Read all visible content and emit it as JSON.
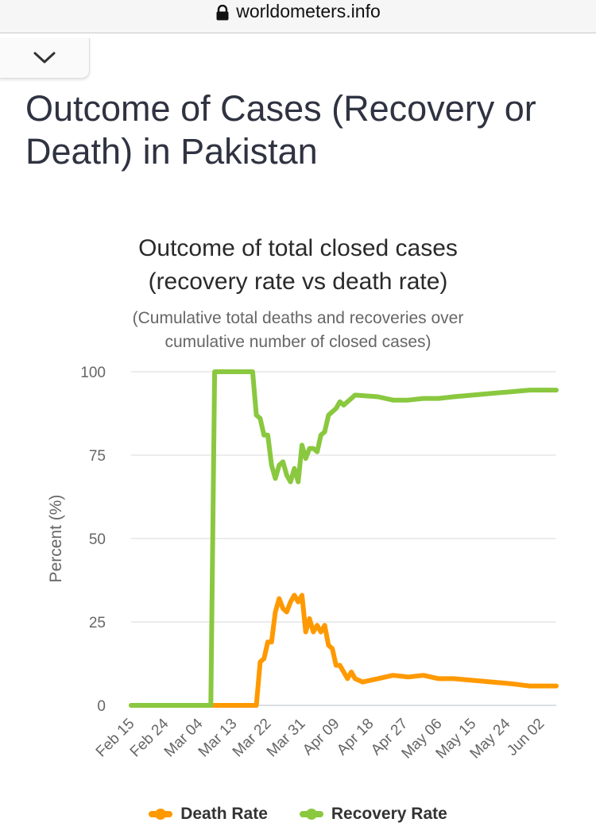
{
  "browser": {
    "url": "worldometers.info"
  },
  "page": {
    "title": "Outcome of Cases (Recovery or Death) in Pakistan"
  },
  "chart_data": {
    "type": "line",
    "title_line1": "Outcome of total closed cases",
    "title_line2": "(recovery rate vs death rate)",
    "subtitle_line1": "(Cumulative total deaths and recoveries over",
    "subtitle_line2": "cumulative number of closed cases)",
    "ylabel": "Percent (%)",
    "ylim": [
      0,
      100
    ],
    "yticks": [
      0,
      25,
      50,
      75,
      100
    ],
    "grid": true,
    "legend_position": "bottom",
    "start_date": "2020-02-15",
    "x_ticks": [
      "Feb 15",
      "Feb 24",
      "Mar 04",
      "Mar 13",
      "Mar 22",
      "Mar 31",
      "Apr 09",
      "Apr 18",
      "Apr 27",
      "May 06",
      "May 15",
      "May 24",
      "Jun 02"
    ],
    "series": [
      {
        "name": "Death Rate",
        "color": "#ff9900",
        "points": [
          [
            "Feb 15",
            0
          ],
          [
            "Mar 19",
            0
          ],
          [
            "Mar 20",
            13
          ],
          [
            "Mar 21",
            14
          ],
          [
            "Mar 22",
            19
          ],
          [
            "Mar 23",
            19
          ],
          [
            "Mar 24",
            28
          ],
          [
            "Mar 25",
            32
          ],
          [
            "Mar 26",
            29
          ],
          [
            "Mar 27",
            28
          ],
          [
            "Mar 28",
            31
          ],
          [
            "Mar 29",
            33
          ],
          [
            "Mar 30",
            31
          ],
          [
            "Mar 31",
            33
          ],
          [
            "Apr 01",
            22
          ],
          [
            "Apr 02",
            26
          ],
          [
            "Apr 03",
            22
          ],
          [
            "Apr 04",
            24
          ],
          [
            "Apr 05",
            22
          ],
          [
            "Apr 06",
            24
          ],
          [
            "Apr 07",
            18
          ],
          [
            "Apr 08",
            17
          ],
          [
            "Apr 09",
            12
          ],
          [
            "Apr 10",
            12
          ],
          [
            "Apr 11",
            10
          ],
          [
            "Apr 12",
            8
          ],
          [
            "Apr 13",
            10
          ],
          [
            "Apr 14",
            8
          ],
          [
            "Apr 16",
            7
          ],
          [
            "Apr 20",
            8
          ],
          [
            "Apr 24",
            9
          ],
          [
            "Apr 28",
            8.5
          ],
          [
            "May 02",
            9
          ],
          [
            "May 06",
            8
          ],
          [
            "May 10",
            8
          ],
          [
            "May 15",
            7.5
          ],
          [
            "May 20",
            7
          ],
          [
            "May 25",
            6.5
          ],
          [
            "May 30",
            5.8
          ],
          [
            "Jun 06",
            5.8
          ]
        ]
      },
      {
        "name": "Recovery Rate",
        "color": "#8ac83f",
        "points": [
          [
            "Feb 15",
            0
          ],
          [
            "Mar 07",
            0
          ],
          [
            "Mar 08",
            100
          ],
          [
            "Mar 18",
            100
          ],
          [
            "Mar 19",
            87
          ],
          [
            "Mar 20",
            86
          ],
          [
            "Mar 21",
            81
          ],
          [
            "Mar 22",
            81
          ],
          [
            "Mar 23",
            72
          ],
          [
            "Mar 24",
            68
          ],
          [
            "Mar 25",
            72
          ],
          [
            "Mar 26",
            73
          ],
          [
            "Mar 27",
            69
          ],
          [
            "Mar 28",
            67
          ],
          [
            "Mar 29",
            71
          ],
          [
            "Mar 30",
            67
          ],
          [
            "Mar 31",
            78
          ],
          [
            "Apr 01",
            74
          ],
          [
            "Apr 02",
            77
          ],
          [
            "Apr 03",
            77
          ],
          [
            "Apr 04",
            76
          ],
          [
            "Apr 05",
            81
          ],
          [
            "Apr 06",
            82
          ],
          [
            "Apr 07",
            87
          ],
          [
            "Apr 08",
            88
          ],
          [
            "Apr 09",
            89
          ],
          [
            "Apr 10",
            91
          ],
          [
            "Apr 11",
            90
          ],
          [
            "Apr 12",
            91
          ],
          [
            "Apr 13",
            92
          ],
          [
            "Apr 14",
            93
          ],
          [
            "Apr 20",
            92.5
          ],
          [
            "Apr 24",
            91.5
          ],
          [
            "Apr 28",
            91.5
          ],
          [
            "May 02",
            92
          ],
          [
            "May 06",
            92
          ],
          [
            "May 10",
            92.5
          ],
          [
            "May 15",
            93
          ],
          [
            "May 20",
            93.5
          ],
          [
            "May 25",
            94
          ],
          [
            "May 30",
            94.5
          ],
          [
            "Jun 06",
            94.5
          ]
        ]
      }
    ]
  }
}
